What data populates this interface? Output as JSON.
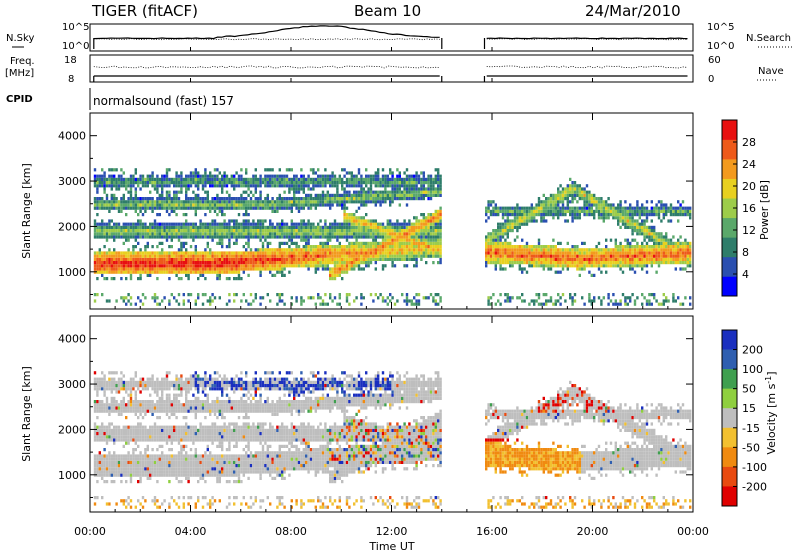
{
  "header": {
    "station": "TIGER (fitACF)",
    "beam": "Beam 10",
    "date": "24/Mar/2010"
  },
  "top_panels": {
    "nsky_label": "N.Sky",
    "nsky_ticks": [
      "10^5",
      "10^0"
    ],
    "nsearch_label": "N.Search",
    "nsearch_ticks": [
      "10^5",
      "10^0"
    ],
    "freq_label_1": "Freq.",
    "freq_label_2": "[MHz]",
    "freq_ticks": [
      "18",
      "8"
    ],
    "nave_label": "Nave",
    "nave_ticks": [
      "60",
      "0"
    ],
    "cpid_label": "CPID",
    "cpid_text": "normalsound (fast) 157"
  },
  "chart_data": [
    {
      "type": "heatmap",
      "name": "power",
      "ylabel": "Slant Range [km]",
      "xlabel": "Time UT",
      "x_ticks": [
        "00:00",
        "04:00",
        "08:00",
        "12:00",
        "16:00",
        "20:00",
        "00:00"
      ],
      "x_tick_hours": [
        0,
        4,
        8,
        12,
        16,
        20,
        24
      ],
      "y_ticks": [
        1000,
        2000,
        3000,
        4000
      ],
      "ylim": [
        180,
        4500
      ],
      "xlim_hours": [
        0,
        24
      ],
      "data_gap_hours": [
        14.0,
        15.7
      ],
      "colorbar_label": "Power [dB]",
      "colorbar_ticks": [
        4,
        8,
        12,
        16,
        20,
        24,
        28
      ],
      "colorbar_range": [
        0,
        32
      ]
    },
    {
      "type": "heatmap",
      "name": "velocity",
      "ylabel": "Slant Range [km]",
      "xlabel": "Time UT",
      "x_ticks": [
        "00:00",
        "04:00",
        "08:00",
        "12:00",
        "16:00",
        "20:00",
        "00:00"
      ],
      "x_tick_hours": [
        0,
        4,
        8,
        12,
        16,
        20,
        24
      ],
      "y_ticks": [
        1000,
        2000,
        3000,
        4000
      ],
      "ylim": [
        180,
        4500
      ],
      "xlim_hours": [
        0,
        24
      ],
      "data_gap_hours": [
        14.0,
        15.7
      ],
      "colorbar_label": "Velocity [m s^-1]",
      "colorbar_ticks": [
        "200",
        "100",
        "50",
        "15",
        "-15",
        "-50",
        "-100",
        "-200"
      ]
    }
  ],
  "colors": {
    "power_scale": [
      "#0000ff",
      "#2a4fb0",
      "#2e7d6a",
      "#5aa86a",
      "#9dcc4a",
      "#e8d020",
      "#f39a1e",
      "#ee5a1a",
      "#e81010"
    ],
    "velocity_scale": [
      "#1a2fbf",
      "#2f5fb0",
      "#3f9f4f",
      "#8fcf3f",
      "#bebebe",
      "#f2c030",
      "#f08a10",
      "#e84a10",
      "#e00000"
    ],
    "ground_scatter": "#bebebe"
  }
}
